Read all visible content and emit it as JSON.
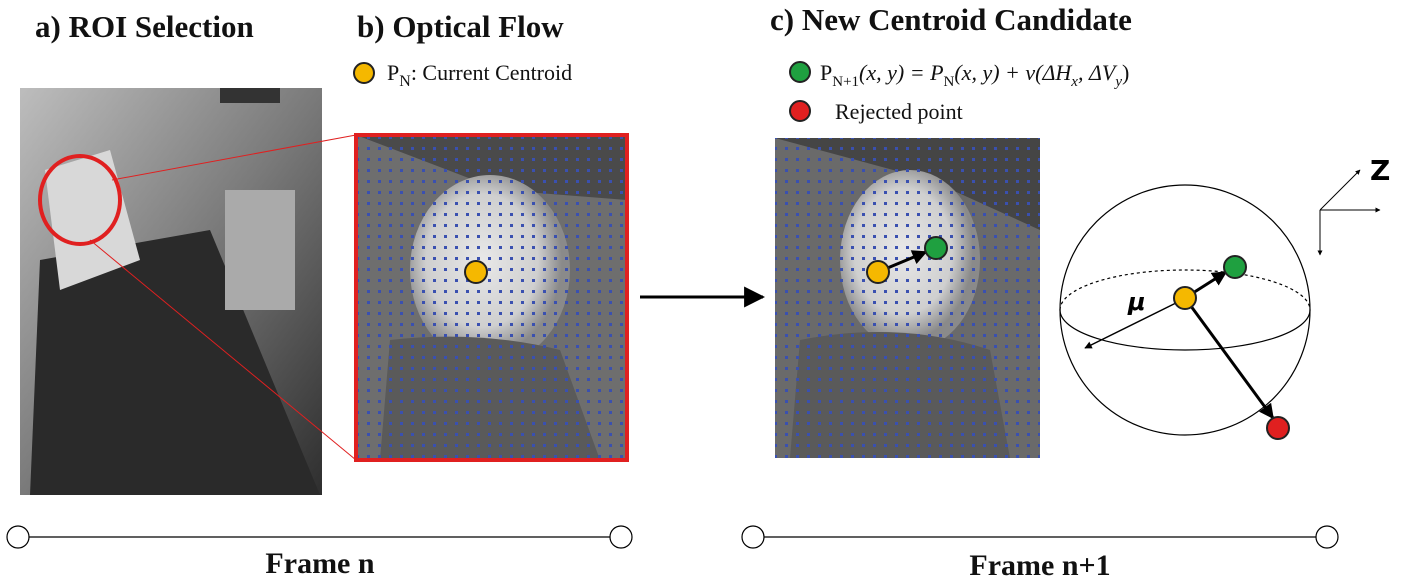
{
  "panels": [
    {
      "title": "a) ROI Selection"
    },
    {
      "title": "b) Optical Flow",
      "legend": [
        {
          "symbol": "P",
          "subscript": "N",
          "text": ": Current Centroid"
        }
      ]
    },
    {
      "title": "c) New Centroid Candidate",
      "legend": [
        {
          "parts": [
            "P",
            "N+1",
            "(x, y) = P",
            "N",
            "(x, y) + v(ΔH",
            "x",
            ", ΔV",
            "y",
            ")"
          ]
        },
        {
          "text": "Rejected point"
        }
      ],
      "axis_label": "Z",
      "radius_label": "μ"
    }
  ],
  "timelines": [
    "Frame n",
    "Frame n+1"
  ]
}
